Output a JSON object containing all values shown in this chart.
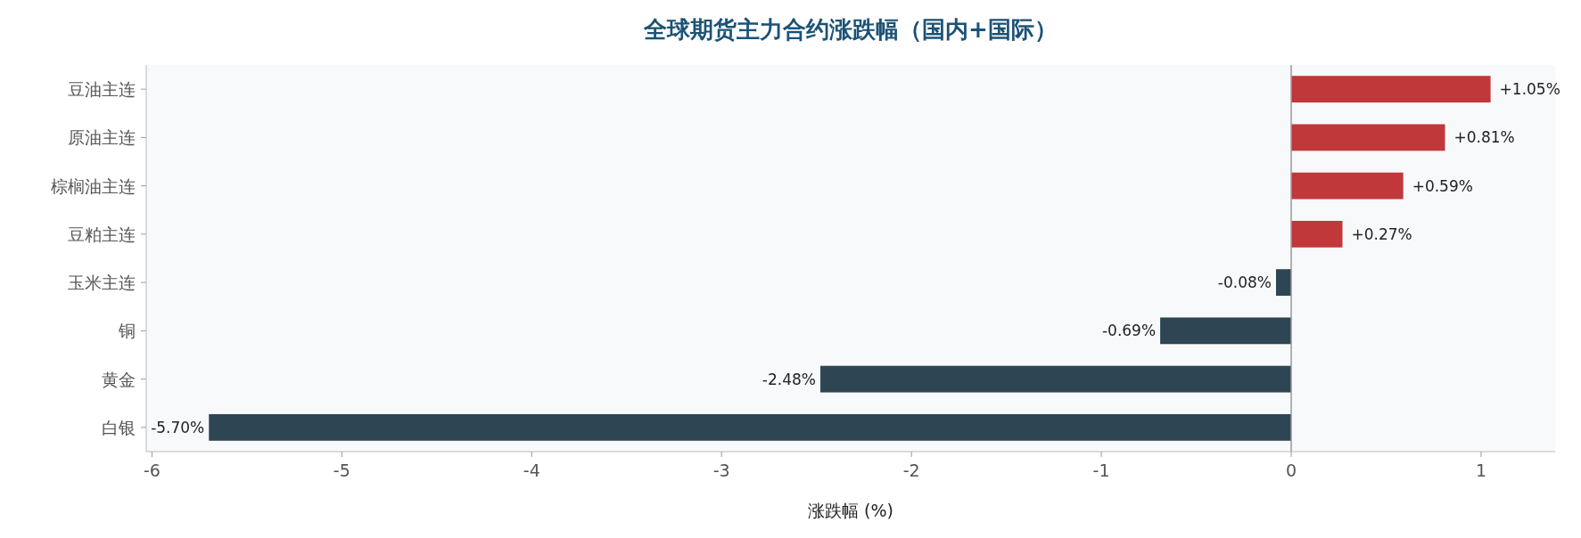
{
  "chart_data": {
    "type": "bar",
    "orientation": "horizontal",
    "title": "全球期货主力合约涨跌幅（国内+国际）",
    "xlabel": "涨跌幅 (%)",
    "categories": [
      "豆油主连",
      "原油主连",
      "棕榈油主连",
      "豆粕主连",
      "玉米主连",
      "铜",
      "黄金",
      "白银"
    ],
    "values": [
      1.05,
      0.81,
      0.59,
      0.27,
      -0.08,
      -0.69,
      -2.48,
      -5.7
    ],
    "colors": [
      "#c0383a",
      "#c0383a",
      "#c0383a",
      "#c0383a",
      "#2e4553",
      "#2e4553",
      "#2e4553",
      "#2e4553"
    ],
    "value_labels": [
      "+1.05%",
      "+0.81%",
      "+0.59%",
      "+0.27%",
      "-0.08%",
      "-0.69%",
      "-2.48%",
      "-5.70%"
    ],
    "xlim": [
      -6.03,
      1.39
    ],
    "xticks": [
      -6,
      -5,
      -4,
      -3,
      -2,
      -1,
      0,
      1
    ],
    "ref_lines": [
      {
        "axis": "x",
        "value": 0,
        "color": "#999999"
      }
    ]
  }
}
